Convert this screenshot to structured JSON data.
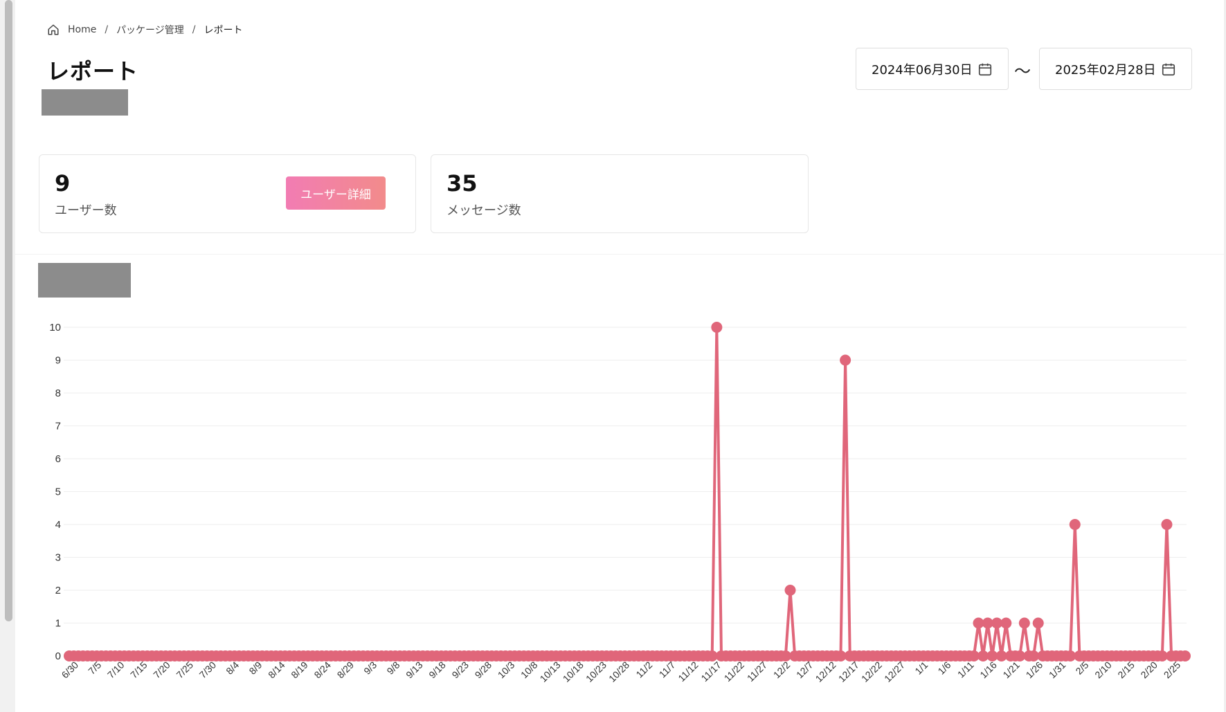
{
  "breadcrumb": {
    "home": "Home",
    "package": "パッケージ管理",
    "current": "レポート"
  },
  "page": {
    "title": "レポート"
  },
  "date_range": {
    "start": "2024年06月30日",
    "end": "2025年02月28日",
    "separator": "〜"
  },
  "stats": {
    "users": {
      "value": "9",
      "label": "ユーザー数",
      "button": "ユーザー詳細"
    },
    "messages": {
      "value": "35",
      "label": "メッセージ数"
    }
  },
  "colors": {
    "accent": "#e0667a",
    "button_start": "#f27cb3",
    "button_end": "#f28b8b"
  },
  "chart_data": {
    "type": "line",
    "x_start": "6/30",
    "x_end": "2/28",
    "x_tick_labels": [
      "6/30",
      "7/5",
      "7/10",
      "7/15",
      "7/20",
      "7/25",
      "7/30",
      "8/4",
      "8/9",
      "8/14",
      "8/19",
      "8/24",
      "8/29",
      "9/3",
      "9/8",
      "9/13",
      "9/18",
      "9/23",
      "9/28",
      "10/3",
      "10/8",
      "10/13",
      "10/18",
      "10/23",
      "10/28",
      "11/2",
      "11/7",
      "11/12",
      "11/17",
      "11/22",
      "11/27",
      "12/2",
      "12/7",
      "12/12",
      "12/17",
      "12/22",
      "12/27",
      "1/1",
      "1/6",
      "1/11",
      "1/16",
      "1/21",
      "1/26",
      "1/31",
      "2/5",
      "2/10",
      "2/15",
      "2/20",
      "2/25"
    ],
    "y_ticks": [
      0,
      1,
      2,
      3,
      4,
      5,
      6,
      7,
      8,
      9,
      10
    ],
    "ylim": [
      0,
      10
    ],
    "grid": true,
    "nonzero_points": [
      {
        "x": "11/18",
        "y": 10
      },
      {
        "x": "12/4",
        "y": 2
      },
      {
        "x": "12/16",
        "y": 9
      },
      {
        "x": "1/14",
        "y": 1
      },
      {
        "x": "1/16",
        "y": 1
      },
      {
        "x": "1/18",
        "y": 1
      },
      {
        "x": "1/20",
        "y": 1
      },
      {
        "x": "1/24",
        "y": 1
      },
      {
        "x": "1/27",
        "y": 1
      },
      {
        "x": "2/4",
        "y": 4
      },
      {
        "x": "2/24",
        "y": 4
      }
    ],
    "default_value": 0,
    "series_color": "#e0667a"
  }
}
